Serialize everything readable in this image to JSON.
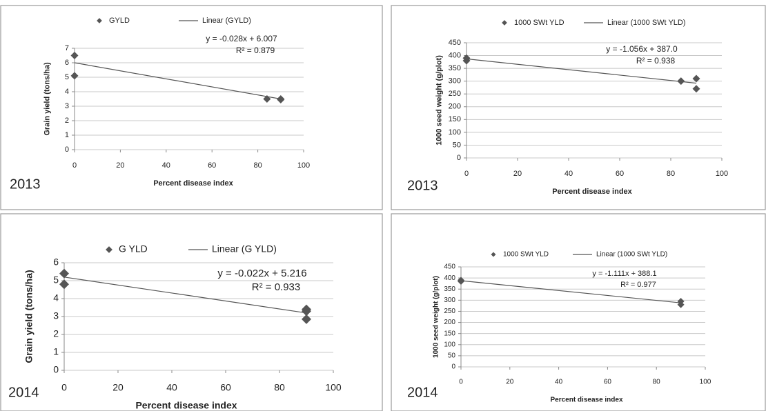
{
  "chart_data": [
    {
      "type": "scatter",
      "label": "2013",
      "x_label": "Percent disease index",
      "y_label": "Grain yield (tons/ha)",
      "annotations": [
        "y = -0.028x + 6.007",
        "R² = 0.879"
      ],
      "xlim": [
        0,
        100
      ],
      "xticks": [
        0,
        20,
        40,
        60,
        80,
        100
      ],
      "ylim": [
        0,
        7
      ],
      "yticks": [
        0,
        1,
        2,
        3,
        4,
        5,
        6,
        7
      ],
      "grid": true,
      "series": [
        {
          "name": "GYLD",
          "color": "#555555",
          "x": [
            0,
            0,
            84,
            90,
            90
          ],
          "values": [
            6.5,
            5.1,
            3.5,
            3.5,
            3.45
          ]
        },
        {
          "name": "Linear (GYLD)",
          "color": "#555555",
          "x": [
            0,
            90
          ],
          "values": [
            6.0,
            3.5
          ]
        }
      ]
    },
    {
      "type": "scatter",
      "label": "2013",
      "x_label": "Percent disease index",
      "y_label": "1000 seed weight (g/plot)",
      "annotations": [
        "y = -1.056x + 387.0",
        "R² = 0.938"
      ],
      "xlim": [
        0,
        100
      ],
      "xticks": [
        0,
        20,
        40,
        60,
        80,
        100
      ],
      "ylim": [
        0,
        450
      ],
      "yticks": [
        0,
        50,
        100,
        150,
        200,
        250,
        300,
        350,
        400,
        450
      ],
      "grid": true,
      "series": [
        {
          "name": "1000 SWt YLD",
          "color": "#555555",
          "x": [
            0,
            0,
            84,
            90,
            90
          ],
          "values": [
            390,
            380,
            300,
            310,
            270
          ]
        },
        {
          "name": "Linear (1000 SWt YLD)",
          "color": "#555555",
          "x": [
            0,
            90
          ],
          "values": [
            387,
            292
          ]
        }
      ]
    },
    {
      "type": "scatter",
      "label": "2014",
      "x_label": "Percent disease index",
      "y_label": "Grain yield (tons/ha)",
      "annotations": [
        "y = -0.022x + 5.216",
        "R² = 0.933"
      ],
      "xlim": [
        0,
        100
      ],
      "xticks": [
        0,
        20,
        40,
        60,
        80,
        100
      ],
      "ylim": [
        0,
        6
      ],
      "yticks": [
        0,
        1,
        2,
        3,
        4,
        5,
        6
      ],
      "grid": true,
      "series": [
        {
          "name": "G YLD",
          "color": "#555555",
          "x": [
            0,
            0,
            90,
            90,
            90
          ],
          "values": [
            5.4,
            4.8,
            3.4,
            3.3,
            2.85
          ]
        },
        {
          "name": "Linear (G YLD)",
          "color": "#555555",
          "x": [
            0,
            90
          ],
          "values": [
            5.2,
            3.2
          ]
        }
      ]
    },
    {
      "type": "scatter",
      "label": "2014",
      "x_label": "Percent disease index",
      "y_label": "1000 seed weight (g/plot)",
      "annotations": [
        "y = -1.111x + 388.1",
        "R² = 0.977"
      ],
      "xlim": [
        0,
        100
      ],
      "xticks": [
        0,
        20,
        40,
        60,
        80,
        100
      ],
      "ylim": [
        0,
        450
      ],
      "yticks": [
        0,
        50,
        100,
        150,
        200,
        250,
        300,
        350,
        400,
        450
      ],
      "grid": true,
      "series": [
        {
          "name": "1000 SWt YLD",
          "color": "#555555",
          "x": [
            0,
            0,
            90,
            90
          ],
          "values": [
            390,
            385,
            295,
            280
          ]
        },
        {
          "name": "Linear (1000 SWt YLD)",
          "color": "#555555",
          "x": [
            0,
            90
          ],
          "values": [
            388,
            288
          ]
        }
      ]
    }
  ]
}
